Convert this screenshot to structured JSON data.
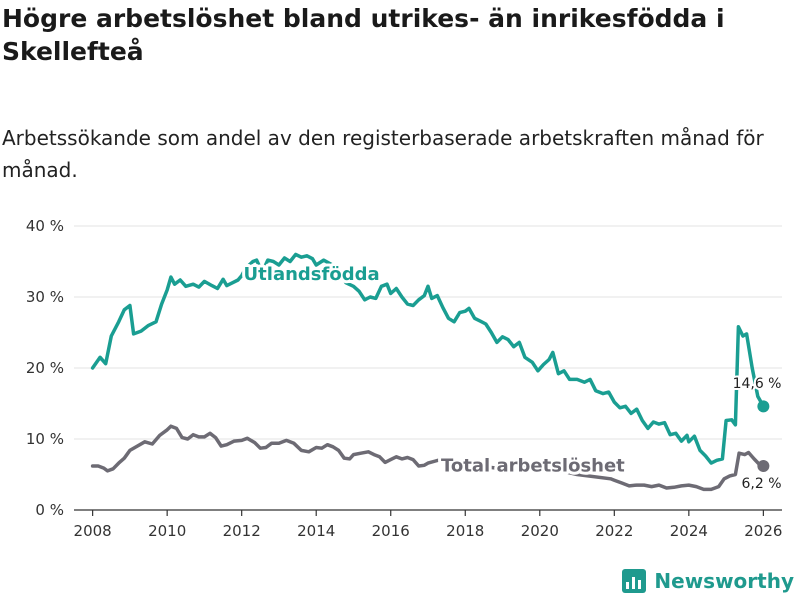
{
  "title": "Högre arbetslöshet bland utrikes- än inrikesfödda i Skellefteå",
  "subtitle": "Arbetssökande som andel av den registerbaserade arbetskraften månad för månad.",
  "brand": {
    "name": "Newsworthy",
    "icon": "bar-chart-icon"
  },
  "colors": {
    "foreign": "#1a9e92",
    "total": "#6d6b74",
    "grid": "#e3e3e3"
  },
  "chart_data": {
    "type": "line",
    "title": "Högre arbetslöshet bland utrikes- än inrikesfödda i Skellefteå",
    "subtitle": "Arbetssökande som andel av den registerbaserade arbetskraften månad för månad.",
    "xlabel": "",
    "ylabel": "",
    "xlim": [
      2007.5,
      2026.5
    ],
    "ylim": [
      0,
      40
    ],
    "xticks": [
      2008,
      2010,
      2012,
      2014,
      2016,
      2018,
      2020,
      2022,
      2024,
      2026
    ],
    "xtick_labels": [
      "2008",
      "2010",
      "2012",
      "2014",
      "2016",
      "2018",
      "2020",
      "2022",
      "2024",
      "2026"
    ],
    "yticks": [
      0,
      10,
      20,
      30,
      40
    ],
    "ytick_labels": [
      "0 %",
      "10 %",
      "20 %",
      "30 %",
      "40 %"
    ],
    "grid": true,
    "series": [
      {
        "name": "Utlandsfödda",
        "label": "Utlandsfödda",
        "color_key": "foreign",
        "end_label": "14,6 %",
        "points": [
          [
            2008.0,
            20.0
          ],
          [
            2008.2,
            21.5
          ],
          [
            2008.35,
            20.6
          ],
          [
            2008.5,
            24.5
          ],
          [
            2008.7,
            26.5
          ],
          [
            2008.85,
            28.2
          ],
          [
            2009.0,
            28.8
          ],
          [
            2009.1,
            24.8
          ],
          [
            2009.3,
            25.2
          ],
          [
            2009.5,
            26.0
          ],
          [
            2009.7,
            26.5
          ],
          [
            2009.85,
            29.0
          ],
          [
            2010.0,
            31.0
          ],
          [
            2010.1,
            32.8
          ],
          [
            2010.2,
            31.8
          ],
          [
            2010.35,
            32.4
          ],
          [
            2010.5,
            31.5
          ],
          [
            2010.7,
            31.8
          ],
          [
            2010.85,
            31.4
          ],
          [
            2011.0,
            32.2
          ],
          [
            2011.2,
            31.6
          ],
          [
            2011.35,
            31.2
          ],
          [
            2011.5,
            32.5
          ],
          [
            2011.6,
            31.6
          ],
          [
            2011.75,
            32.0
          ],
          [
            2011.9,
            32.4
          ],
          [
            2012.0,
            33.0
          ],
          [
            2012.1,
            34.0
          ],
          [
            2012.3,
            35.0
          ],
          [
            2012.4,
            35.2
          ],
          [
            2012.55,
            33.5
          ],
          [
            2012.7,
            35.2
          ],
          [
            2012.85,
            35.0
          ],
          [
            2013.0,
            34.5
          ],
          [
            2013.15,
            35.5
          ],
          [
            2013.3,
            35.0
          ],
          [
            2013.45,
            36.0
          ],
          [
            2013.6,
            35.6
          ],
          [
            2013.75,
            35.8
          ],
          [
            2013.9,
            35.4
          ],
          [
            2014.0,
            34.5
          ],
          [
            2014.2,
            35.2
          ],
          [
            2014.4,
            34.6
          ],
          [
            2014.6,
            33.5
          ],
          [
            2014.8,
            32.0
          ],
          [
            2015.0,
            31.5
          ],
          [
            2015.15,
            30.8
          ],
          [
            2015.3,
            29.6
          ],
          [
            2015.45,
            30.0
          ],
          [
            2015.6,
            29.8
          ],
          [
            2015.75,
            31.5
          ],
          [
            2015.9,
            31.8
          ],
          [
            2016.0,
            30.5
          ],
          [
            2016.15,
            31.2
          ],
          [
            2016.3,
            30.0
          ],
          [
            2016.45,
            29.0
          ],
          [
            2016.6,
            28.8
          ],
          [
            2016.75,
            29.6
          ],
          [
            2016.9,
            30.2
          ],
          [
            2017.0,
            31.5
          ],
          [
            2017.1,
            29.8
          ],
          [
            2017.25,
            30.2
          ],
          [
            2017.4,
            28.5
          ],
          [
            2017.55,
            27.0
          ],
          [
            2017.7,
            26.5
          ],
          [
            2017.85,
            27.8
          ],
          [
            2018.0,
            28.0
          ],
          [
            2018.1,
            28.4
          ],
          [
            2018.25,
            27.0
          ],
          [
            2018.4,
            26.6
          ],
          [
            2018.55,
            26.2
          ],
          [
            2018.7,
            25.0
          ],
          [
            2018.85,
            23.6
          ],
          [
            2019.0,
            24.4
          ],
          [
            2019.15,
            24.0
          ],
          [
            2019.3,
            23.0
          ],
          [
            2019.45,
            23.6
          ],
          [
            2019.6,
            21.5
          ],
          [
            2019.8,
            20.8
          ],
          [
            2019.95,
            19.6
          ],
          [
            2020.1,
            20.5
          ],
          [
            2020.25,
            21.2
          ],
          [
            2020.35,
            22.2
          ],
          [
            2020.5,
            19.2
          ],
          [
            2020.65,
            19.6
          ],
          [
            2020.8,
            18.4
          ],
          [
            2021.0,
            18.4
          ],
          [
            2021.2,
            18.0
          ],
          [
            2021.35,
            18.4
          ],
          [
            2021.5,
            16.8
          ],
          [
            2021.7,
            16.4
          ],
          [
            2021.85,
            16.6
          ],
          [
            2022.0,
            15.2
          ],
          [
            2022.15,
            14.4
          ],
          [
            2022.3,
            14.6
          ],
          [
            2022.45,
            13.6
          ],
          [
            2022.6,
            14.2
          ],
          [
            2022.75,
            12.6
          ],
          [
            2022.9,
            11.5
          ],
          [
            2023.05,
            12.4
          ],
          [
            2023.2,
            12.1
          ],
          [
            2023.35,
            12.3
          ],
          [
            2023.5,
            10.6
          ],
          [
            2023.65,
            10.8
          ],
          [
            2023.8,
            9.7
          ],
          [
            2023.95,
            10.5
          ],
          [
            2024.0,
            9.6
          ],
          [
            2024.15,
            10.4
          ],
          [
            2024.3,
            8.4
          ],
          [
            2024.45,
            7.6
          ],
          [
            2024.6,
            6.6
          ],
          [
            2024.75,
            7.0
          ],
          [
            2024.9,
            7.2
          ],
          [
            2025.0,
            12.6
          ],
          [
            2025.15,
            12.7
          ],
          [
            2025.25,
            12.0
          ],
          [
            2025.33,
            25.8
          ],
          [
            2025.45,
            24.5
          ],
          [
            2025.55,
            24.8
          ],
          [
            2025.7,
            20.0
          ],
          [
            2025.85,
            16.0
          ],
          [
            2026.0,
            14.6
          ]
        ]
      },
      {
        "name": "Total arbetslöshet",
        "label": "Total arbetslöshet",
        "color_key": "total",
        "end_label": "6,2 %",
        "points": [
          [
            2008.0,
            6.2
          ],
          [
            2008.15,
            6.2
          ],
          [
            2008.3,
            5.9
          ],
          [
            2008.4,
            5.5
          ],
          [
            2008.55,
            5.8
          ],
          [
            2008.7,
            6.6
          ],
          [
            2008.85,
            7.3
          ],
          [
            2009.0,
            8.4
          ],
          [
            2009.2,
            9.0
          ],
          [
            2009.4,
            9.6
          ],
          [
            2009.6,
            9.3
          ],
          [
            2009.8,
            10.5
          ],
          [
            2010.0,
            11.3
          ],
          [
            2010.1,
            11.8
          ],
          [
            2010.25,
            11.5
          ],
          [
            2010.4,
            10.2
          ],
          [
            2010.55,
            10.0
          ],
          [
            2010.7,
            10.6
          ],
          [
            2010.85,
            10.3
          ],
          [
            2011.0,
            10.3
          ],
          [
            2011.15,
            10.8
          ],
          [
            2011.3,
            10.2
          ],
          [
            2011.45,
            9.0
          ],
          [
            2011.6,
            9.2
          ],
          [
            2011.8,
            9.7
          ],
          [
            2012.0,
            9.8
          ],
          [
            2012.15,
            10.1
          ],
          [
            2012.35,
            9.5
          ],
          [
            2012.5,
            8.7
          ],
          [
            2012.65,
            8.8
          ],
          [
            2012.8,
            9.4
          ],
          [
            2013.0,
            9.4
          ],
          [
            2013.2,
            9.8
          ],
          [
            2013.4,
            9.4
          ],
          [
            2013.6,
            8.4
          ],
          [
            2013.8,
            8.2
          ],
          [
            2014.0,
            8.8
          ],
          [
            2014.15,
            8.7
          ],
          [
            2014.3,
            9.2
          ],
          [
            2014.45,
            8.9
          ],
          [
            2014.6,
            8.4
          ],
          [
            2014.75,
            7.3
          ],
          [
            2014.9,
            7.2
          ],
          [
            2015.0,
            7.8
          ],
          [
            2015.2,
            8.0
          ],
          [
            2015.4,
            8.2
          ],
          [
            2015.55,
            7.8
          ],
          [
            2015.7,
            7.5
          ],
          [
            2015.85,
            6.7
          ],
          [
            2016.0,
            7.1
          ],
          [
            2016.15,
            7.5
          ],
          [
            2016.3,
            7.2
          ],
          [
            2016.45,
            7.4
          ],
          [
            2016.6,
            7.1
          ],
          [
            2016.75,
            6.2
          ],
          [
            2016.9,
            6.3
          ],
          [
            2017.0,
            6.6
          ],
          [
            2017.2,
            6.9
          ],
          [
            2017.4,
            7.2
          ],
          [
            2018.0,
            6.4
          ],
          [
            2019.0,
            5.8
          ],
          [
            2020.0,
            6.2
          ],
          [
            2021.0,
            5.0
          ],
          [
            2021.9,
            4.4
          ],
          [
            2022.0,
            4.2
          ],
          [
            2022.2,
            3.8
          ],
          [
            2022.4,
            3.4
          ],
          [
            2022.6,
            3.5
          ],
          [
            2022.8,
            3.5
          ],
          [
            2023.0,
            3.3
          ],
          [
            2023.2,
            3.5
          ],
          [
            2023.4,
            3.1
          ],
          [
            2023.6,
            3.2
          ],
          [
            2023.8,
            3.4
          ],
          [
            2024.0,
            3.5
          ],
          [
            2024.2,
            3.3
          ],
          [
            2024.4,
            2.9
          ],
          [
            2024.6,
            2.9
          ],
          [
            2024.8,
            3.3
          ],
          [
            2024.95,
            4.4
          ],
          [
            2025.1,
            4.8
          ],
          [
            2025.25,
            5.0
          ],
          [
            2025.35,
            8.0
          ],
          [
            2025.5,
            7.8
          ],
          [
            2025.6,
            8.1
          ],
          [
            2025.75,
            7.2
          ],
          [
            2025.9,
            6.4
          ],
          [
            2026.0,
            6.2
          ]
        ]
      }
    ]
  }
}
